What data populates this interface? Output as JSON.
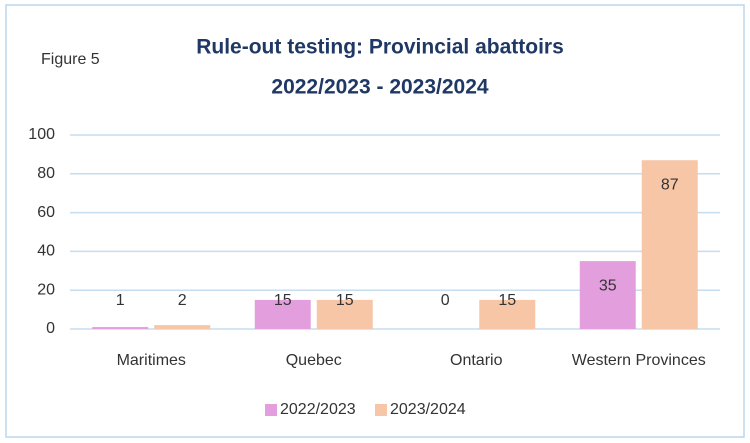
{
  "chart_data": {
    "type": "bar",
    "title": [
      "Rule-out testing: Provincial abattoirs",
      "2022/2023 - 2023/2024"
    ],
    "annotation": "Figure 5",
    "categories": [
      "Maritimes",
      "Quebec",
      "Ontario",
      "Western Provinces"
    ],
    "series": [
      {
        "name": "2022/2023",
        "color": "#e39fdd",
        "values": [
          1,
          15,
          0,
          35
        ]
      },
      {
        "name": "2023/2024",
        "color": "#f7c6a6",
        "values": [
          2,
          15,
          15,
          87
        ]
      }
    ],
    "ylim": [
      0,
      100
    ],
    "yticks": [
      0,
      20,
      40,
      60,
      80,
      100
    ],
    "grid": true,
    "legend": "bottom"
  }
}
